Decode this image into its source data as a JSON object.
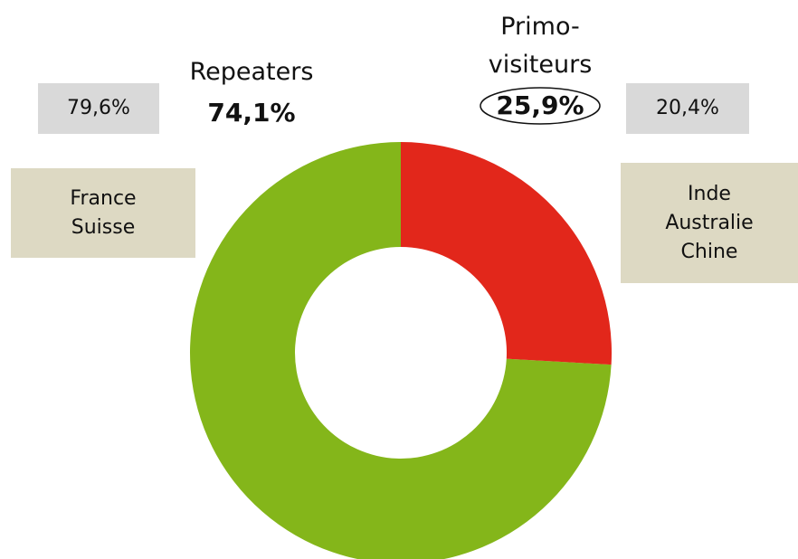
{
  "chart_data": {
    "type": "pie",
    "categories": [
      "Primo-\nvisiteurs",
      "Repeaters"
    ],
    "values": [
      25.9,
      74.1
    ],
    "value_labels": [
      "25,9%",
      "74,1%"
    ],
    "colors": [
      "#e2271b",
      "#84b61a"
    ],
    "annotations": [
      "20,4%",
      "79,6%",
      "Inde\nAustralie\nChine",
      "France\nSuisse"
    ]
  }
}
